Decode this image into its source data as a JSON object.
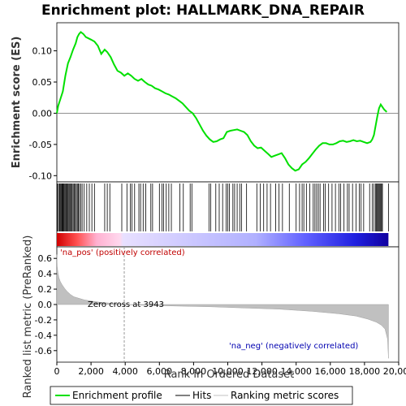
{
  "title": "Enrichment plot: HALLMARK_DNA_REPAIR",
  "colors": {
    "enrichment_line": "#00e000",
    "hits": "#000000",
    "metric_fill": "#c0c0c0",
    "pos_annotation": "#c00000",
    "neg_annotation": "#0000b0",
    "zero_line": "#808080"
  },
  "legend": {
    "items": [
      {
        "label": "Enrichment profile",
        "icon": "green-line-icon"
      },
      {
        "label": "Hits",
        "icon": "black-line-icon"
      },
      {
        "label": "Ranking metric scores",
        "icon": "gray-line-icon"
      }
    ]
  },
  "chart_data": [
    {
      "type": "line",
      "panel": "enrichment",
      "ylabel": "Enrichment score (ES)",
      "xlim": [
        0,
        20000
      ],
      "ylim": [
        -0.11,
        0.145
      ],
      "yticks": [
        -0.1,
        -0.05,
        0.0,
        0.05,
        0.1
      ],
      "ytick_labels": [
        "-0.10",
        "-0.05",
        "0.00",
        "0.05",
        "0.10"
      ],
      "grid": false,
      "series": [
        {
          "x": [
            0,
            80,
            200,
            350,
            500,
            650,
            800,
            950,
            1100,
            1200,
            1300,
            1400,
            1550,
            1700,
            1850,
            2000,
            2200,
            2400,
            2600,
            2800,
            2950,
            3150,
            3350,
            3550,
            3750,
            3950,
            4150,
            4350,
            4550,
            4750,
            4950,
            5150,
            5350,
            5550,
            5750,
            5950,
            6150,
            6350,
            6550,
            6750,
            6950,
            7150,
            7350,
            7550,
            7750,
            7950,
            8150,
            8350,
            8550,
            8750,
            8950,
            9150,
            9350,
            9550,
            9750,
            9950,
            10150,
            10350,
            10550,
            10750,
            10950,
            11150,
            11350,
            11550,
            11750,
            11950,
            12150,
            12350,
            12550,
            12750,
            12950,
            13150,
            13350,
            13550,
            13750,
            13950,
            14150,
            14350,
            14550,
            14750,
            14950,
            15150,
            15350,
            15550,
            15750,
            15950,
            16150,
            16350,
            16550,
            16750,
            16950,
            17150,
            17350,
            17550,
            17750,
            17950,
            18150,
            18350,
            18450,
            18550,
            18650,
            18750,
            18850,
            18950,
            19050,
            19150,
            19300
          ],
          "values": [
            0.0,
            0.012,
            0.022,
            0.035,
            0.06,
            0.08,
            0.09,
            0.102,
            0.112,
            0.122,
            0.127,
            0.13,
            0.127,
            0.122,
            0.12,
            0.118,
            0.115,
            0.108,
            0.095,
            0.102,
            0.098,
            0.09,
            0.078,
            0.068,
            0.065,
            0.06,
            0.064,
            0.06,
            0.055,
            0.052,
            0.055,
            0.05,
            0.046,
            0.044,
            0.04,
            0.038,
            0.035,
            0.032,
            0.03,
            0.027,
            0.024,
            0.02,
            0.016,
            0.01,
            0.004,
            0.0,
            -0.008,
            -0.018,
            -0.028,
            -0.036,
            -0.042,
            -0.046,
            -0.045,
            -0.042,
            -0.04,
            -0.03,
            -0.028,
            -0.027,
            -0.026,
            -0.028,
            -0.03,
            -0.035,
            -0.045,
            -0.052,
            -0.056,
            -0.055,
            -0.06,
            -0.065,
            -0.07,
            -0.068,
            -0.066,
            -0.064,
            -0.072,
            -0.082,
            -0.088,
            -0.092,
            -0.09,
            -0.082,
            -0.078,
            -0.072,
            -0.065,
            -0.058,
            -0.052,
            -0.048,
            -0.048,
            -0.05,
            -0.05,
            -0.048,
            -0.045,
            -0.044,
            -0.046,
            -0.045,
            -0.043,
            -0.045,
            -0.044,
            -0.046,
            -0.048,
            -0.046,
            -0.042,
            -0.035,
            -0.02,
            -0.005,
            0.008,
            0.014,
            0.01,
            0.006,
            0.002
          ]
        }
      ]
    },
    {
      "type": "scatter",
      "panel": "hits",
      "description_positions": "gene set member ranks",
      "x": [
        30,
        90,
        150,
        190,
        240,
        290,
        330,
        370,
        410,
        460,
        510,
        550,
        600,
        640,
        700,
        750,
        800,
        850,
        900,
        960,
        1020,
        1080,
        1140,
        1200,
        1260,
        1320,
        1400,
        1480,
        1600,
        1750,
        1900,
        2050,
        2200,
        2800,
        2950,
        3100,
        3800,
        4100,
        4300,
        4400,
        4550,
        4800,
        4900,
        5050,
        5200,
        5500,
        5600,
        6000,
        6150,
        6250,
        6400,
        6550,
        6700,
        7200,
        7400,
        7800,
        7900,
        8900,
        9000,
        9300,
        9500,
        9700,
        9900,
        10000,
        10100,
        10300,
        10400,
        10550,
        10700,
        10800,
        11100,
        11700,
        11900,
        12100,
        12300,
        12500,
        12800,
        13000,
        13200,
        13600,
        14000,
        14200,
        14350,
        14450,
        14600,
        14800,
        15000,
        15100,
        15200,
        15300,
        15400,
        15600,
        15700,
        15900,
        16100,
        16300,
        16500,
        16600,
        16800,
        17000,
        17100,
        17300,
        17500,
        17700,
        17800,
        17950,
        18300,
        18450,
        18550,
        18650,
        18700,
        18750,
        18800,
        18850,
        18900,
        18950,
        19000,
        19050,
        19400
      ]
    },
    {
      "type": "area",
      "panel": "ranked_metric",
      "title": "",
      "xlabel": "Rank in Ordered Dataset",
      "ylabel": "Ranked list metric (PreRanked)",
      "xlim": [
        0,
        20000
      ],
      "ylim": [
        -0.75,
        0.75
      ],
      "xticks": [
        0,
        2000,
        4000,
        6000,
        8000,
        10000,
        12000,
        14000,
        16000,
        18000,
        20000
      ],
      "xtick_labels": [
        "0",
        "2,000",
        "4,000",
        "6,000",
        "8,000",
        "10,000",
        "12,000",
        "14,000",
        "16,000",
        "18,000",
        "20,000"
      ],
      "yticks": [
        -0.6,
        -0.4,
        -0.2,
        0.0,
        0.2,
        0.4,
        0.6
      ],
      "ytick_labels": [
        "-0.6",
        "-0.4",
        "-0.2",
        "0.0",
        "0.2",
        "0.4",
        "0.6"
      ],
      "x": [
        0,
        20,
        60,
        120,
        200,
        300,
        450,
        600,
        800,
        1000,
        1300,
        1600,
        2000,
        2500,
        3000,
        3500,
        3943,
        5000,
        7000,
        9000,
        11000,
        13000,
        15000,
        16500,
        17500,
        18200,
        18700,
        19000,
        19200,
        19350,
        19400
      ],
      "values": [
        0.65,
        0.5,
        0.42,
        0.35,
        0.3,
        0.26,
        0.21,
        0.17,
        0.13,
        0.1,
        0.08,
        0.06,
        0.045,
        0.03,
        0.02,
        0.01,
        0.0,
        -0.01,
        -0.02,
        -0.03,
        -0.045,
        -0.06,
        -0.09,
        -0.12,
        -0.15,
        -0.19,
        -0.23,
        -0.27,
        -0.32,
        -0.45,
        -0.7
      ],
      "zero_cross": 3943,
      "annotations": {
        "pos": "'na_pos' (positively correlated)",
        "neg": "'na_neg' (negatively correlated)",
        "zero": "Zero cross at 3943"
      }
    }
  ]
}
